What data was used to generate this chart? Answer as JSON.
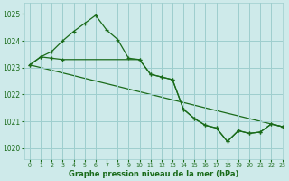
{
  "title": "Graphe pression niveau de la mer (hPa)",
  "background_color": "#ceeaea",
  "grid_color": "#9ecece",
  "line_color": "#1a6b1a",
  "xlim": [
    -0.5,
    23
  ],
  "ylim": [
    1019.6,
    1025.4
  ],
  "yticks": [
    1020,
    1021,
    1022,
    1023,
    1024,
    1025
  ],
  "xticks": [
    0,
    1,
    2,
    3,
    4,
    5,
    6,
    7,
    8,
    9,
    10,
    11,
    12,
    13,
    14,
    15,
    16,
    17,
    18,
    19,
    20,
    21,
    22,
    23
  ],
  "series1_x": [
    0,
    1,
    2,
    3,
    4,
    5,
    6,
    7,
    8,
    9,
    10,
    11,
    12,
    13,
    14,
    15,
    16,
    17,
    18,
    19,
    20,
    21,
    22,
    23
  ],
  "series1_y": [
    1023.1,
    1023.4,
    1023.6,
    1024.0,
    1024.35,
    1024.65,
    1024.95,
    1024.4,
    1024.05,
    1023.35,
    1023.3,
    1022.75,
    1022.65,
    1022.55,
    1021.45,
    1021.1,
    1020.85,
    1020.75,
    1020.25,
    1020.65,
    1020.55,
    1020.6,
    1020.9,
    1020.8
  ],
  "series2_x": [
    0,
    1,
    2,
    3,
    10,
    11,
    12,
    13,
    14,
    15,
    16,
    17,
    18,
    19,
    20,
    21,
    22,
    23
  ],
  "series2_y": [
    1023.1,
    1023.4,
    1023.35,
    1023.3,
    1023.3,
    1022.75,
    1022.65,
    1022.55,
    1021.45,
    1021.1,
    1020.85,
    1020.75,
    1020.25,
    1020.65,
    1020.55,
    1020.6,
    1020.9,
    1020.8
  ],
  "series3_x": [
    0,
    23
  ],
  "series3_y": [
    1023.1,
    1020.8
  ]
}
